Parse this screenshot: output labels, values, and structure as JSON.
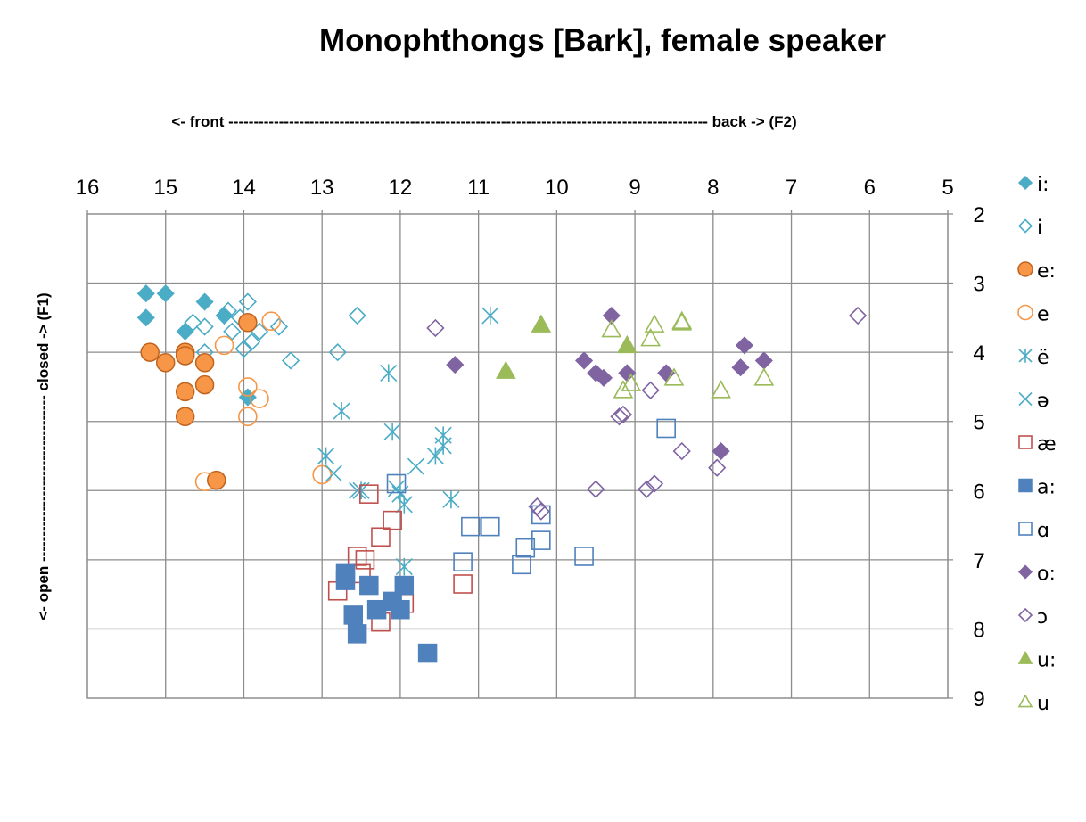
{
  "chart_data": {
    "type": "scatter",
    "title": "Monophthongs [Bark], female speaker",
    "xlabel": "<- front ----------------------------------------------------------------------------------------------- back -> (F2)",
    "ylabel": "<- open --------------------------------- closed -> (F1)",
    "x_axis": {
      "min": 5,
      "max": 16,
      "reversed": true,
      "position": "top",
      "ticks": [
        "16",
        "15",
        "14",
        "13",
        "12",
        "11",
        "10",
        "9",
        "8",
        "7",
        "6",
        "5"
      ]
    },
    "y_axis": {
      "min": 2,
      "max": 9,
      "reversed": true,
      "position": "right",
      "ticks": [
        "2",
        "3",
        "4",
        "5",
        "6",
        "7",
        "8",
        "9"
      ]
    },
    "grid": true,
    "legend_position": "right",
    "series": [
      {
        "name": "i:",
        "marker": "diamond",
        "filled": true,
        "color": "#4bacc6",
        "points": [
          [
            15.25,
            3.15
          ],
          [
            15.25,
            3.5
          ],
          [
            15.0,
            3.15
          ],
          [
            14.5,
            3.27
          ],
          [
            14.75,
            3.7
          ],
          [
            14.25,
            3.47
          ],
          [
            13.95,
            4.65
          ]
        ]
      },
      {
        "name": "i",
        "marker": "diamond",
        "filled": false,
        "color": "#4bacc6",
        "points": [
          [
            14.65,
            3.57
          ],
          [
            14.5,
            3.63
          ],
          [
            14.2,
            3.4
          ],
          [
            14.15,
            3.7
          ],
          [
            14.05,
            3.5
          ],
          [
            13.95,
            3.27
          ],
          [
            13.9,
            3.85
          ],
          [
            13.8,
            3.7
          ],
          [
            14.0,
            3.95
          ],
          [
            13.55,
            3.63
          ],
          [
            13.4,
            4.12
          ],
          [
            12.8,
            4.0
          ],
          [
            12.55,
            3.47
          ],
          [
            14.5,
            4.0
          ]
        ]
      },
      {
        "name": "e:",
        "marker": "circle",
        "filled": true,
        "color": "#f79646",
        "points": [
          [
            15.2,
            4.0
          ],
          [
            15.0,
            4.15
          ],
          [
            14.75,
            4.0
          ],
          [
            14.75,
            4.05
          ],
          [
            14.5,
            4.15
          ],
          [
            14.5,
            4.47
          ],
          [
            14.75,
            4.57
          ],
          [
            14.75,
            4.93
          ],
          [
            13.95,
            3.57
          ],
          [
            14.35,
            5.85
          ]
        ]
      },
      {
        "name": "e",
        "marker": "circle",
        "filled": false,
        "color": "#f79646",
        "points": [
          [
            14.25,
            3.9
          ],
          [
            13.65,
            3.55
          ],
          [
            13.95,
            4.5
          ],
          [
            13.8,
            4.67
          ],
          [
            13.95,
            4.93
          ],
          [
            14.5,
            5.87
          ],
          [
            13.0,
            5.77
          ]
        ]
      },
      {
        "name": "ë",
        "marker": "star",
        "filled": false,
        "color": "#4bacc6",
        "points": [
          [
            10.85,
            3.47
          ],
          [
            12.15,
            4.3
          ],
          [
            12.75,
            4.85
          ],
          [
            12.95,
            5.5
          ],
          [
            12.1,
            5.15
          ],
          [
            11.45,
            5.2
          ],
          [
            11.45,
            5.35
          ],
          [
            11.55,
            5.5
          ],
          [
            12.5,
            6.0
          ],
          [
            12.0,
            6.05
          ],
          [
            11.95,
            6.2
          ],
          [
            11.35,
            6.13
          ],
          [
            11.95,
            7.1
          ]
        ]
      },
      {
        "name": "ə",
        "marker": "x",
        "filled": false,
        "color": "#4bacc6",
        "points": [
          [
            12.85,
            5.75
          ],
          [
            11.8,
            5.65
          ],
          [
            12.05,
            5.97
          ],
          [
            12.55,
            6.0
          ]
        ]
      },
      {
        "name": "æ",
        "marker": "square",
        "filled": false,
        "color": "#c0504d",
        "points": [
          [
            12.4,
            6.05
          ],
          [
            12.1,
            6.43
          ],
          [
            12.25,
            6.67
          ],
          [
            12.55,
            6.95
          ],
          [
            12.45,
            7.0
          ],
          [
            12.5,
            7.2
          ],
          [
            12.8,
            7.45
          ],
          [
            11.95,
            7.63
          ],
          [
            11.2,
            7.35
          ],
          [
            12.25,
            7.9
          ]
        ]
      },
      {
        "name": "a:",
        "marker": "square",
        "filled": true,
        "color": "#4f81bd",
        "points": [
          [
            12.7,
            7.2
          ],
          [
            12.7,
            7.3
          ],
          [
            12.4,
            7.37
          ],
          [
            11.95,
            7.37
          ],
          [
            12.1,
            7.6
          ],
          [
            12.3,
            7.72
          ],
          [
            12.0,
            7.72
          ],
          [
            12.6,
            7.8
          ],
          [
            12.55,
            8.07
          ],
          [
            11.65,
            8.35
          ]
        ]
      },
      {
        "name": "ɑ",
        "marker": "square",
        "filled": false,
        "color": "#4f81bd",
        "points": [
          [
            8.6,
            5.1
          ],
          [
            12.05,
            5.9
          ],
          [
            11.1,
            6.52
          ],
          [
            10.85,
            6.52
          ],
          [
            10.2,
            6.35
          ],
          [
            10.2,
            6.72
          ],
          [
            10.4,
            6.83
          ],
          [
            11.2,
            7.03
          ],
          [
            10.45,
            7.07
          ],
          [
            9.65,
            6.95
          ]
        ]
      },
      {
        "name": "o:",
        "marker": "diamond",
        "filled": true,
        "color": "#8064a2",
        "points": [
          [
            9.3,
            3.47
          ],
          [
            7.6,
            3.9
          ],
          [
            9.65,
            4.12
          ],
          [
            11.3,
            4.18
          ],
          [
            9.5,
            4.3
          ],
          [
            9.4,
            4.37
          ],
          [
            9.1,
            4.3
          ],
          [
            8.6,
            4.3
          ],
          [
            7.65,
            4.22
          ],
          [
            7.35,
            4.12
          ],
          [
            7.9,
            5.43
          ]
        ]
      },
      {
        "name": "ɔ",
        "marker": "diamond",
        "filled": false,
        "color": "#8064a2",
        "points": [
          [
            6.15,
            3.47
          ],
          [
            11.55,
            3.65
          ],
          [
            8.8,
            4.55
          ],
          [
            9.2,
            4.93
          ],
          [
            9.15,
            4.9
          ],
          [
            8.4,
            5.43
          ],
          [
            7.95,
            5.67
          ],
          [
            8.75,
            5.9
          ],
          [
            8.85,
            5.98
          ],
          [
            9.5,
            5.98
          ],
          [
            10.25,
            6.23
          ],
          [
            10.2,
            6.3
          ]
        ]
      },
      {
        "name": "u:",
        "marker": "triangle",
        "filled": true,
        "color": "#9bbb59",
        "points": [
          [
            10.2,
            3.6
          ],
          [
            9.1,
            3.9
          ],
          [
            10.65,
            4.27
          ]
        ]
      },
      {
        "name": "u",
        "marker": "triangle",
        "filled": false,
        "color": "#9bbb59",
        "points": [
          [
            8.4,
            3.57
          ],
          [
            8.4,
            3.55
          ],
          [
            8.75,
            3.6
          ],
          [
            9.3,
            3.67
          ],
          [
            8.8,
            3.8
          ],
          [
            8.5,
            4.37
          ],
          [
            9.05,
            4.45
          ],
          [
            9.15,
            4.55
          ],
          [
            7.9,
            4.55
          ],
          [
            7.35,
            4.37
          ]
        ]
      }
    ]
  }
}
